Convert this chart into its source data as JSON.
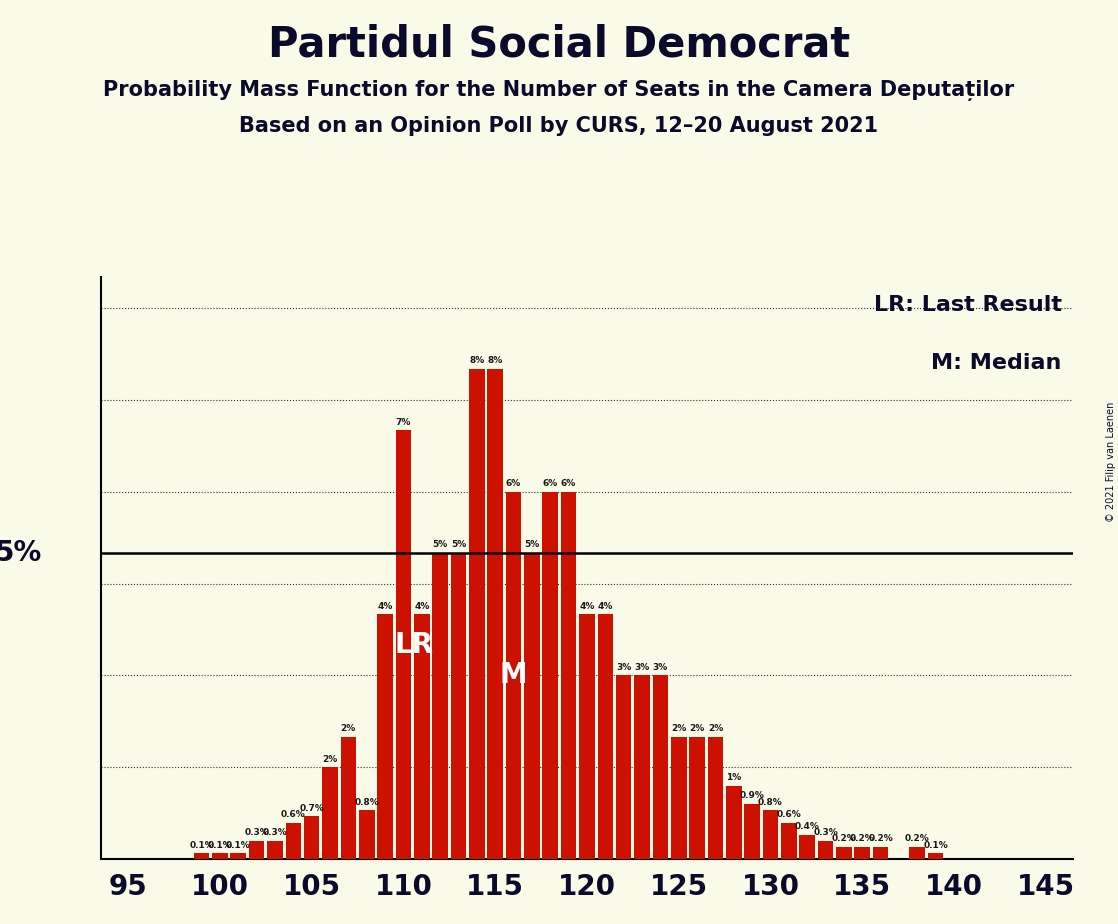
{
  "title": "Partidul Social Democrat",
  "subtitle1": "Probability Mass Function for the Number of Seats in the Camera Deputaților",
  "subtitle2": "Based on an Opinion Poll by CURS, 12–20 August 2021",
  "copyright": "© 2021 Filip van Laenen",
  "background_color": "#FAFAE8",
  "bar_color": "#CC1100",
  "title_color": "#0A0A2A",
  "seats": [
    95,
    96,
    97,
    98,
    99,
    100,
    101,
    102,
    103,
    104,
    105,
    106,
    107,
    108,
    109,
    110,
    111,
    112,
    113,
    114,
    115,
    116,
    117,
    118,
    119,
    120,
    121,
    122,
    123,
    124,
    125,
    126,
    127,
    128,
    129,
    130,
    131,
    132,
    133,
    134,
    135,
    136,
    137,
    138,
    139,
    140,
    141,
    142,
    143,
    144,
    145
  ],
  "probabilities": [
    0.0,
    0.0,
    0.0,
    0.0,
    0.1,
    0.1,
    0.1,
    0.3,
    0.3,
    0.6,
    0.7,
    1.5,
    2.0,
    0.8,
    4.0,
    7.0,
    4.0,
    5.0,
    5.0,
    8.0,
    8.0,
    6.0,
    5.0,
    6.0,
    6.0,
    4.0,
    4.0,
    3.0,
    3.0,
    3.0,
    2.0,
    2.0,
    2.0,
    1.2,
    0.9,
    0.8,
    0.6,
    0.4,
    0.3,
    0.2,
    0.2,
    0.2,
    0.0,
    0.2,
    0.1,
    0.0,
    0.0,
    0.0,
    0.0,
    0.0,
    0.0
  ],
  "median_seat": 116,
  "last_result_seat": 110,
  "five_percent_line": 5.0,
  "xtick_seats": [
    95,
    100,
    105,
    110,
    115,
    120,
    125,
    130,
    135,
    140,
    145
  ],
  "xlim": [
    93.5,
    146.5
  ],
  "ylim": [
    0,
    9.5
  ],
  "grid_y_values": [
    1.5,
    3.0,
    4.5,
    6.0,
    7.5,
    9.0
  ],
  "legend_lr": "LR: Last Result",
  "legend_m": "M: Median",
  "ytick_label": "5%",
  "lr_label": "LR",
  "median_label": "M",
  "title_fontsize": 30,
  "subtitle_fontsize": 15,
  "bar_label_fontsize": 6.5,
  "axis_tick_fontsize": 20,
  "legend_fontsize": 16,
  "annotation_fontsize": 20,
  "ylabel_fontsize": 20
}
